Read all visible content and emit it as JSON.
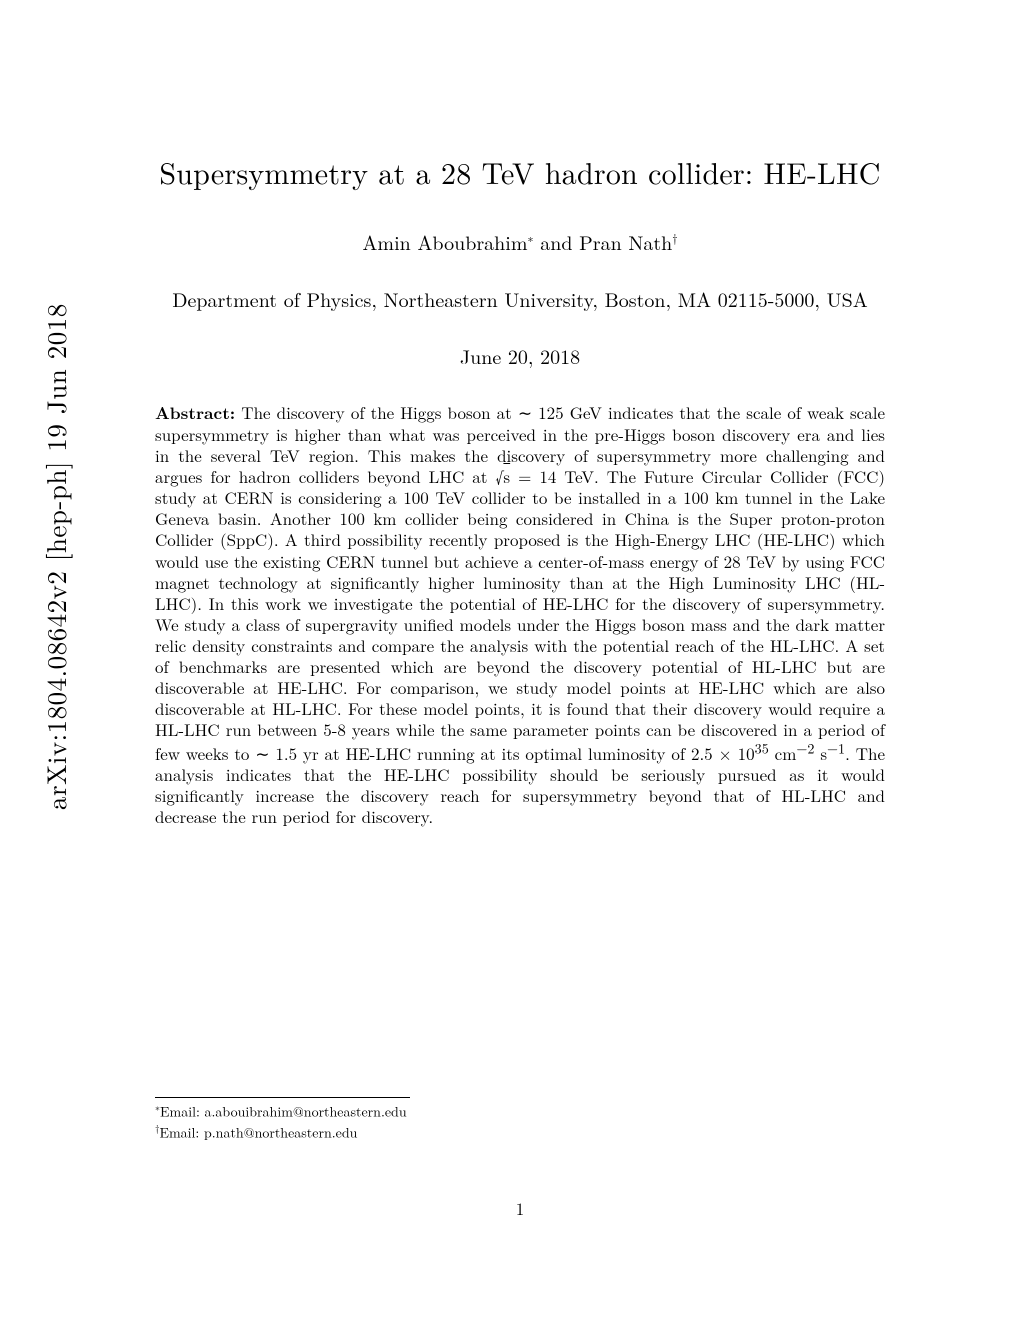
{
  "arxiv": {
    "identifier": "arXiv:1804.08642v2  [hep-ph]  19 Jun 2018"
  },
  "title": "Supersymmetry at a 28 TeV hadron collider: HE-LHC",
  "authors": {
    "line": "Amin Aboubrahim",
    "marker1": "∗",
    "and": " and Pran Nath",
    "marker2": "†"
  },
  "affiliation": "Department of Physics, Northeastern University, Boston, MA 02115-5000, USA",
  "date": "June 20, 2018",
  "abstract": {
    "label": "Abstract:",
    "body_html": "   The discovery of the Higgs boson at ∼ 125 GeV indicates that the scale of weak scale supersymmetry is higher than what was perceived in the pre-Higgs boson discovery era and lies in the several TeV region. This makes the discovery of supersymmetry more challenging and argues for hadron colliders beyond LHC at √<span style='text-decoration:overline'>s</span> = 14 TeV. The Future Circular Collider (FCC) study at CERN is considering a 100 TeV collider to be installed in a 100 km tunnel in the Lake Geneva basin. Another 100 km collider being considered in China is the Super proton-proton Collider (SppC). A third possibility recently proposed is the High-Energy LHC (HE-LHC) which would use the existing CERN tunnel but achieve a center-of-mass energy of 28 TeV by using FCC magnet technology at significantly higher luminosity than at the High Luminosity LHC (HL-LHC). In this work we investigate the potential of HE-LHC for the discovery of supersymmetry. We study a class of supergravity unified models under the Higgs boson mass and the dark matter relic density constraints and compare the analysis with the potential reach of the HL-LHC. A set of benchmarks are presented which are beyond the discovery potential of HL-LHC but are discoverable at HE-LHC. For comparison, we study model points at HE-LHC which are also discoverable at HL-LHC. For these model points, it is found that their discovery would require a HL-LHC run between 5-8 years while the same parameter points can be discovered in a period of few weeks to ∼ 1.5 yr at HE-LHC running at its optimal luminosity of 2.5 × 10<sup>35</sup> cm<sup>−2</sup> s<sup>−1</sup>. The analysis indicates that the HE-LHC possibility should be seriously pursued as it would significantly increase the discovery reach for supersymmetry beyond that of HL-LHC and decrease the run period for discovery."
  },
  "footnotes": {
    "fn1_marker": "∗",
    "fn1_text": "Email: a.abouibrahim@northeastern.edu",
    "fn2_marker": "†",
    "fn2_text": "Email: p.nath@northeastern.edu"
  },
  "page_number": "1",
  "colors": {
    "text": "#000000",
    "background": "#ffffff"
  },
  "typography": {
    "title_fontsize_pt": 22,
    "authors_fontsize_pt": 15,
    "body_fontsize_pt": 13,
    "footnote_fontsize_pt": 10,
    "arxiv_fontsize_pt": 20
  }
}
